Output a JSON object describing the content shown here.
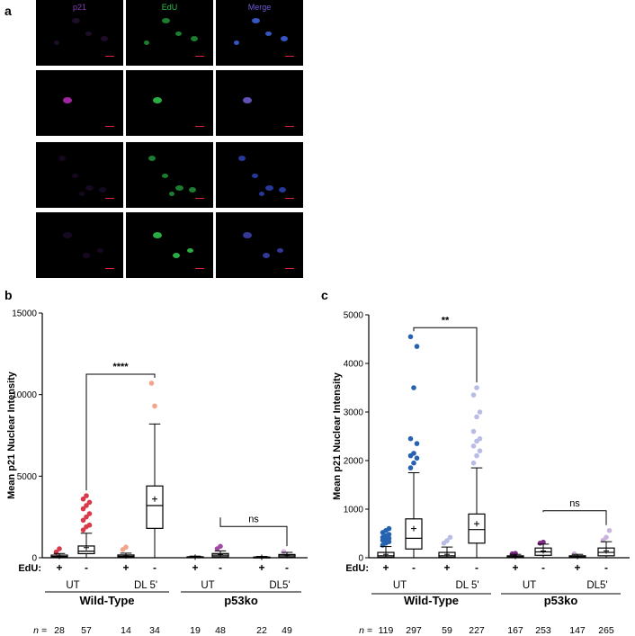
{
  "panel_labels": {
    "a": "a",
    "b": "b",
    "c": "c"
  },
  "micrographs": {
    "channels": [
      {
        "name": "p21",
        "color": "#8a3fb8"
      },
      {
        "name": "EdU",
        "color": "#2fbf4a"
      },
      {
        "name": "Merge",
        "color": "#6d5cd6"
      }
    ],
    "row_count": 4
  },
  "chart_data": [
    {
      "type": "box",
      "panel": "b",
      "ylabel": "Mean p21 Nuclear Intensity",
      "ylim": [
        0,
        15000
      ],
      "yticks": [
        "0",
        "5000",
        "10000",
        "15000"
      ],
      "edu_label": "EdU:",
      "edu": [
        "+",
        "-",
        "+",
        "-",
        "+",
        "-",
        "+",
        "-"
      ],
      "treatments": [
        "UT",
        "DL 5'",
        "UT",
        "DL5'"
      ],
      "genotypes": [
        "Wild-Type",
        "p53ko"
      ],
      "n_label": "n =",
      "n": [
        "28",
        "57",
        "14",
        "34",
        "19",
        "48",
        "22",
        "49"
      ],
      "significance": [
        {
          "between": [
            1,
            3
          ],
          "label": "****"
        },
        {
          "between": [
            5,
            7
          ],
          "label": "ns"
        }
      ],
      "groups": [
        {
          "q1": 30,
          "median": 80,
          "q3": 160,
          "wlo": 0,
          "whi": 260,
          "mean": 90,
          "outliers": [
            350,
            550
          ],
          "color": "#d93a4a"
        },
        {
          "q1": 250,
          "median": 400,
          "q3": 720,
          "wlo": 0,
          "whi": 1500,
          "mean": 620,
          "outliers": [
            1700,
            1900,
            2000,
            2300,
            2500,
            2700,
            3000,
            3200,
            3400,
            3600,
            3800
          ],
          "color": "#d93a4a"
        },
        {
          "q1": 40,
          "median": 90,
          "q3": 170,
          "wlo": 0,
          "whi": 280,
          "mean": 100,
          "outliers": [
            500,
            650
          ],
          "color": "#f4a48a"
        },
        {
          "q1": 1800,
          "median": 3200,
          "q3": 4400,
          "wlo": 0,
          "whi": 8200,
          "mean": 3600,
          "outliers": [
            10700,
            9300
          ],
          "color": "#f4a48a"
        },
        {
          "q1": 10,
          "median": 30,
          "q3": 60,
          "wlo": 0,
          "whi": 100,
          "mean": 35,
          "outliers": [],
          "color": "#a24aa4"
        },
        {
          "q1": 60,
          "median": 160,
          "q3": 260,
          "wlo": 0,
          "whi": 420,
          "mean": 190,
          "outliers": [
            550,
            700
          ],
          "color": "#a24aa4"
        },
        {
          "q1": 5,
          "median": 20,
          "q3": 45,
          "wlo": 0,
          "whi": 80,
          "mean": 25,
          "outliers": [],
          "color": "#d8b8e8"
        },
        {
          "q1": 40,
          "median": 120,
          "q3": 200,
          "wlo": 0,
          "whi": 330,
          "mean": 130,
          "outliers": [
            380
          ],
          "color": "#d8b8e8"
        }
      ]
    },
    {
      "type": "box",
      "panel": "c",
      "ylabel": "Mean p21 Nuclear Intensity",
      "ylim": [
        0,
        5000
      ],
      "yticks": [
        "0",
        "1000",
        "2000",
        "3000",
        "4000",
        "5000"
      ],
      "edu_label": "EdU:",
      "edu": [
        "+",
        "-",
        "+",
        "-",
        "+",
        "-",
        "+",
        "-"
      ],
      "treatments": [
        "UT",
        "DL 5'",
        "UT",
        "DL5'"
      ],
      "genotypes": [
        "Wild-Type",
        "p53ko"
      ],
      "n_label": "n =",
      "n": [
        "119",
        "297",
        "59",
        "227",
        "167",
        "253",
        "147",
        "265"
      ],
      "significance": [
        {
          "between": [
            1,
            3
          ],
          "label": "**"
        },
        {
          "between": [
            5,
            7
          ],
          "label": "ns"
        }
      ],
      "groups": [
        {
          "q1": 10,
          "median": 40,
          "q3": 110,
          "wlo": 0,
          "whi": 230,
          "mean": 70,
          "outliers": [
            260,
            300,
            330,
            360,
            380,
            400,
            420,
            450,
            480,
            520,
            560,
            600
          ],
          "color": "#2563b0"
        },
        {
          "q1": 180,
          "median": 400,
          "q3": 800,
          "wlo": 0,
          "whi": 1750,
          "mean": 600,
          "outliers": [
            1850,
            1950,
            2050,
            2100,
            2150,
            2350,
            2450,
            3500,
            4350,
            4550
          ],
          "color": "#2563b0"
        },
        {
          "q1": 10,
          "median": 40,
          "q3": 110,
          "wlo": 0,
          "whi": 220,
          "mean": 70,
          "outliers": [
            300,
            350,
            420
          ],
          "color": "#b9bde6"
        },
        {
          "q1": 300,
          "median": 580,
          "q3": 900,
          "wlo": 0,
          "whi": 1850,
          "mean": 700,
          "outliers": [
            1950,
            2100,
            2200,
            2300,
            2400,
            2450,
            2600,
            2900,
            3000,
            3350,
            3500
          ],
          "color": "#b9bde6"
        },
        {
          "q1": 5,
          "median": 20,
          "q3": 40,
          "wlo": 0,
          "whi": 70,
          "mean": 25,
          "outliers": [
            80,
            90
          ],
          "color": "#7e2a86"
        },
        {
          "q1": 50,
          "median": 120,
          "q3": 200,
          "wlo": 0,
          "whi": 280,
          "mean": 140,
          "outliers": [
            300,
            320
          ],
          "color": "#7e2a86"
        },
        {
          "q1": 5,
          "median": 20,
          "q3": 40,
          "wlo": 0,
          "whi": 70,
          "mean": 25,
          "outliers": [
            80
          ],
          "color": "#c9b5dc"
        },
        {
          "q1": 40,
          "median": 110,
          "q3": 200,
          "wlo": 0,
          "whi": 330,
          "mean": 140,
          "outliers": [
            360,
            420,
            560
          ],
          "color": "#c9b5dc"
        }
      ]
    }
  ]
}
